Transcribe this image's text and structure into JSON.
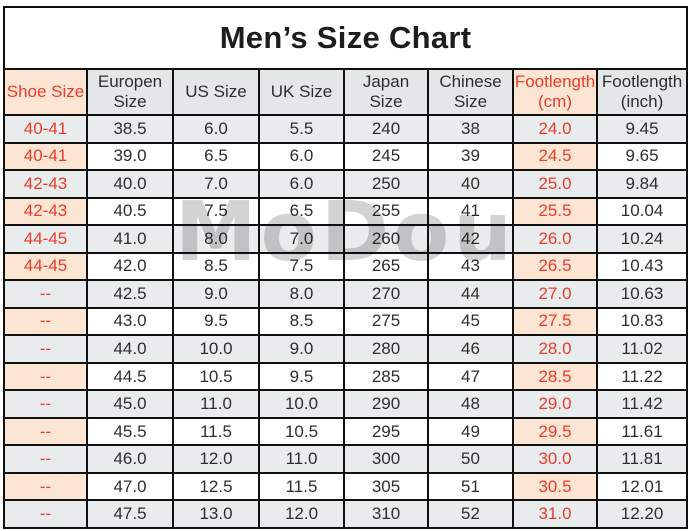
{
  "title": "Men’s Size Chart",
  "watermark": "MoDou",
  "colors": {
    "highlight_bg": "#fce5d3",
    "highlight_text": "#ee3b2a",
    "row_alt_bg": "#e8eced",
    "header_bg": "#e3e7e8",
    "border": "#101010",
    "text": "#2e2e2e"
  },
  "chart_data": {
    "type": "table",
    "title": "Men’s Size Chart",
    "columns": [
      {
        "label": "Shoe Size",
        "highlight": true
      },
      {
        "label": "Europen Size",
        "highlight": false
      },
      {
        "label": "US Size",
        "highlight": false
      },
      {
        "label": "UK Size",
        "highlight": false
      },
      {
        "label": "Japan Size",
        "highlight": false
      },
      {
        "label": "Chinese Size",
        "highlight": false
      },
      {
        "label": "Footlength (cm)",
        "highlight": true
      },
      {
        "label": "Footlength (inch)",
        "highlight": false
      }
    ],
    "rows": [
      [
        "40-41",
        "38.5",
        "6.0",
        "5.5",
        "240",
        "38",
        "24.0",
        "9.45"
      ],
      [
        "40-41",
        "39.0",
        "6.5",
        "6.0",
        "245",
        "39",
        "24.5",
        "9.65"
      ],
      [
        "42-43",
        "40.0",
        "7.0",
        "6.0",
        "250",
        "40",
        "25.0",
        "9.84"
      ],
      [
        "42-43",
        "40.5",
        "7.5",
        "6.5",
        "255",
        "41",
        "25.5",
        "10.04"
      ],
      [
        "44-45",
        "41.0",
        "8.0",
        "7.0",
        "260",
        "42",
        "26.0",
        "10.24"
      ],
      [
        "44-45",
        "42.0",
        "8.5",
        "7.5",
        "265",
        "43",
        "26.5",
        "10.43"
      ],
      [
        "--",
        "42.5",
        "9.0",
        "8.0",
        "270",
        "44",
        "27.0",
        "10.63"
      ],
      [
        "--",
        "43.0",
        "9.5",
        "8.5",
        "275",
        "45",
        "27.5",
        "10.83"
      ],
      [
        "--",
        "44.0",
        "10.0",
        "9.0",
        "280",
        "46",
        "28.0",
        "11.02"
      ],
      [
        "--",
        "44.5",
        "10.5",
        "9.5",
        "285",
        "47",
        "28.5",
        "11.22"
      ],
      [
        "--",
        "45.0",
        "11.0",
        "10.0",
        "290",
        "48",
        "29.0",
        "11.42"
      ],
      [
        "--",
        "45.5",
        "11.5",
        "10.5",
        "295",
        "49",
        "29.5",
        "11.61"
      ],
      [
        "--",
        "46.0",
        "12.0",
        "11.0",
        "300",
        "50",
        "30.0",
        "11.81"
      ],
      [
        "--",
        "47.0",
        "12.5",
        "11.5",
        "305",
        "51",
        "30.5",
        "12.01"
      ],
      [
        "--",
        "47.5",
        "13.0",
        "12.0",
        "310",
        "52",
        "31.0",
        "12.20"
      ]
    ]
  }
}
